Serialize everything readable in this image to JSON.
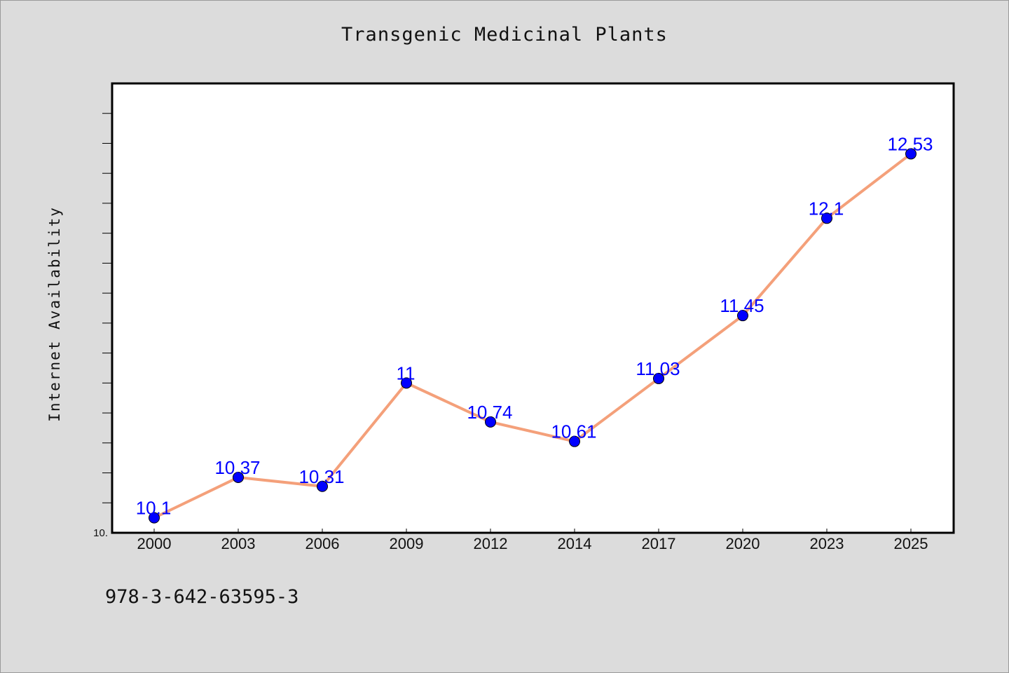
{
  "footer_code": "978-3-642-63595-3",
  "chart_data": {
    "type": "line",
    "title": "Transgenic Medicinal Plants",
    "xlabel": "",
    "ylabel": "Internet Availability",
    "categories": [
      "2000",
      "2003",
      "2006",
      "2009",
      "2012",
      "2014",
      "2017",
      "2020",
      "2023",
      "2025"
    ],
    "series": [
      {
        "values": [
          10.1,
          10.37,
          10.31,
          11,
          10.74,
          10.61,
          11.03,
          11.45,
          12.1,
          12.53
        ]
      }
    ],
    "data_labels": [
      "10.1",
      "10.37",
      "10.31",
      "11",
      "10.74",
      "10.61",
      "11.03",
      "11.45",
      "12.1",
      "12.53"
    ],
    "ylim": [
      10.0,
      13.0
    ],
    "y_min_label": "10.",
    "grid": false,
    "legend": "none",
    "colors": {
      "line": "#f4a07a",
      "marker": "#0000ff",
      "label": "#0000ff"
    }
  }
}
